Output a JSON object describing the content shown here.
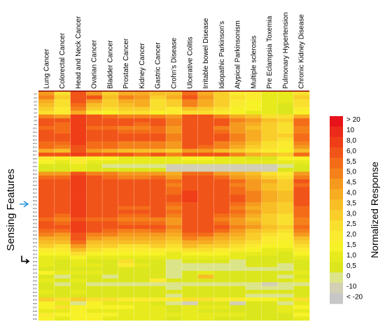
{
  "chart_data": {
    "type": "heatmap",
    "categories": [
      "Lung Cancer",
      "Colorectal Cancer",
      "Head and Neck Cancer",
      "Ovarian Cancer",
      "Bladder Cancer",
      "Prostate Cancer",
      "Kidney Cancer",
      "Gastric Cancer",
      "Crohn's Disease",
      "Ulcerative Colitis",
      "Irritable bowel Disease",
      "Idiopathic Parkinson's",
      "Atypical Parkinsonism",
      "Multiple sclerosis",
      "Pre Eclampsia Toxemia",
      "Pulmonary Hypertension",
      "Chronic Kidney Disease"
    ],
    "rows": [
      "SF1",
      "SF2",
      "SF3",
      "SF4",
      "SF5",
      "SF6",
      "SF7",
      "SF8",
      "SF9",
      "SF10",
      "SF11",
      "SF12",
      "SF13",
      "SF14",
      "SF15",
      "SF16",
      "SF17",
      "SF18",
      "SF19",
      "SF20",
      "SF21",
      "SF22",
      "SF23",
      "SF24",
      "SF25",
      "SF26",
      "SF27",
      "SF28",
      "SF29",
      "SF30",
      "SF31",
      "SF32",
      "SF33",
      "SF34",
      "SF35",
      "SF36",
      "SF37",
      "SF38",
      "SF39",
      "SF40",
      "SF41",
      "SF42",
      "SF43",
      "SF44",
      "SF45",
      "SF46",
      "SF47",
      "SF48",
      "SF49",
      "SF50",
      "SF51",
      "SF52",
      "SF53",
      "SF54",
      "SF55",
      "SF56",
      "SF57",
      "SF58",
      "SF59",
      "SF60"
    ],
    "ylabel": "Sensing Features",
    "legend_title": "Normalized Response",
    "legend_levels": [
      "> 20",
      "10",
      "8,0",
      "6,0",
      "5,5",
      "5,0",
      "4,5",
      "4,0",
      "3,5",
      "3,0",
      "2,5",
      "2,0",
      "1,5",
      "1,0",
      "0,5",
      "0",
      "-10",
      "< -20"
    ],
    "legend_colors": [
      "#E8131A",
      "#EC2A1A",
      "#EF3D18",
      "#F15418",
      "#F46C18",
      "#F5811A",
      "#F59A1E",
      "#F7AC22",
      "#F8BE25",
      "#F9CE2A",
      "#FAE02E",
      "#FBEB30",
      "#F7F227",
      "#E7EA1C",
      "#DCE61D",
      "#DCE48A",
      "#D2CFB5",
      "#C7C7C7"
    ],
    "values": [
      [
        4.5,
        2.8,
        6.5,
        4.8,
        3.2,
        4.4,
        4.1,
        3.5,
        3.7,
        5.6,
        4.3,
        3.2,
        2.2,
        2.2,
        1.3,
        1.1,
        2.8
      ],
      [
        5.1,
        3.3,
        7.5,
        6.6,
        3.9,
        5.0,
        4.6,
        3.3,
        4.2,
        6.3,
        4.9,
        3.0,
        2.5,
        2.1,
        1.4,
        1.3,
        3.3
      ],
      [
        4.1,
        2.5,
        6.9,
        4.7,
        3.4,
        4.2,
        4.1,
        2.8,
        3.4,
        5.2,
        4.4,
        3.2,
        2.2,
        1.6,
        1.1,
        1.1,
        2.7
      ],
      [
        3.9,
        2.7,
        5.9,
        3.8,
        3.2,
        3.6,
        4.0,
        2.7,
        3.0,
        5.1,
        4.4,
        3.3,
        2.2,
        1.9,
        1.2,
        0.9,
        2.5
      ],
      [
        3.0,
        2.2,
        5.1,
        3.2,
        2.7,
        3.0,
        3.1,
        2.5,
        2.4,
        3.6,
        3.2,
        2.5,
        1.7,
        1.9,
        1.1,
        0.9,
        2.1
      ],
      [
        2.7,
        2.0,
        4.4,
        2.3,
        1.9,
        2.8,
        2.6,
        1.9,
        2.0,
        2.8,
        2.8,
        2.4,
        1.9,
        1.3,
        1.1,
        0.5,
        1.9
      ],
      [
        5.1,
        4.9,
        8.0,
        6.3,
        5.9,
        5.2,
        5.2,
        5.4,
        4.6,
        6.1,
        6.0,
        5.2,
        4.1,
        3.7,
        2.5,
        2.6,
        4.1
      ],
      [
        6.8,
        6.1,
        9.4,
        7.2,
        6.8,
        6.2,
        6.3,
        6.3,
        5.3,
        7.3,
        7.0,
        6.2,
        5.0,
        4.5,
        3.5,
        3.2,
        5.9
      ],
      [
        6.4,
        5.9,
        8.9,
        6.6,
        6.5,
        6.0,
        5.9,
        6.0,
        5.1,
        7.2,
        6.8,
        6.0,
        4.9,
        4.1,
        3.1,
        2.8,
        5.5
      ],
      [
        5.8,
        5.5,
        8.1,
        5.9,
        5.8,
        5.4,
        5.3,
        5.5,
        4.8,
        6.4,
        6.0,
        5.3,
        4.6,
        3.7,
        3.0,
        2.5,
        5.0
      ],
      [
        6.2,
        5.8,
        8.6,
        6.4,
        6.3,
        5.8,
        5.7,
        5.9,
        4.9,
        6.8,
        6.5,
        5.8,
        4.9,
        4.0,
        3.1,
        2.7,
        5.3
      ],
      [
        7.0,
        6.4,
        9.5,
        7.1,
        6.9,
        6.4,
        6.2,
        6.4,
        5.4,
        7.5,
        7.2,
        6.4,
        5.3,
        4.4,
        3.4,
        3.0,
        5.7
      ],
      [
        6.6,
        6.2,
        9.1,
        6.8,
        6.6,
        6.2,
        6.0,
        6.3,
        5.3,
        7.3,
        7.0,
        6.2,
        5.2,
        4.3,
        3.3,
        2.9,
        5.6
      ],
      [
        5.9,
        5.5,
        8.0,
        5.9,
        5.8,
        5.4,
        5.3,
        5.4,
        4.7,
        6.4,
        6.1,
        5.4,
        4.6,
        3.6,
        2.9,
        2.4,
        5.0
      ],
      [
        5.5,
        5.2,
        7.6,
        5.7,
        5.5,
        5.0,
        5.0,
        5.2,
        4.5,
        6.1,
        5.8,
        5.1,
        4.4,
        3.4,
        2.8,
        2.3,
        4.8
      ],
      [
        4.4,
        3.8,
        6.2,
        4.5,
        4.2,
        3.8,
        3.7,
        3.9,
        3.3,
        4.6,
        4.5,
        3.9,
        3.4,
        2.6,
        2.1,
        1.8,
        3.6
      ],
      [
        6.2,
        6.3,
        8.5,
        6.5,
        6.3,
        6.0,
        5.8,
        6.2,
        5.3,
        7.1,
        6.9,
        6.1,
        5.3,
        4.2,
        3.6,
        3.1,
        5.6
      ],
      [
        2.0,
        1.6,
        2.4,
        1.8,
        1.5,
        1.3,
        1.2,
        1.4,
        1.2,
        1.6,
        1.5,
        1.4,
        1.2,
        0.9,
        0.9,
        1.7,
        1.7
      ],
      [
        1.5,
        1.3,
        2.2,
        1.3,
        1.2,
        1.1,
        1.2,
        1.2,
        1.0,
        1.4,
        1.3,
        1.2,
        1.1,
        1.2,
        1.0,
        1.4,
        1.4
      ],
      [
        0.7,
        0.6,
        1.1,
        0.6,
        0.4,
        0.3,
        0.3,
        0.4,
        -1,
        -1,
        -1,
        -1,
        -1,
        -1,
        -1,
        0.4,
        0.7
      ],
      [
        0.8,
        0.7,
        1.2,
        0.7,
        0.6,
        0.5,
        0.6,
        0.5,
        -1,
        -1,
        -1,
        -1,
        -1,
        -1,
        -1,
        0.6,
        0.9
      ],
      [
        4.9,
        4.7,
        7.1,
        5.3,
        5.1,
        4.6,
        4.6,
        4.8,
        4.2,
        5.7,
        5.5,
        4.8,
        4.1,
        3.5,
        2.8,
        2.4,
        4.6
      ],
      [
        5.9,
        5.6,
        8.1,
        6.1,
        5.9,
        5.4,
        5.4,
        5.7,
        4.9,
        6.6,
        6.4,
        5.6,
        4.8,
        4.1,
        3.4,
        2.9,
        5.2
      ],
      [
        6.9,
        6.6,
        9.5,
        7.2,
        7.0,
        6.4,
        6.4,
        6.7,
        5.7,
        7.7,
        7.5,
        6.5,
        5.7,
        4.9,
        4.0,
        3.4,
        6.1
      ],
      [
        6.5,
        6.2,
        9.0,
        6.7,
        6.6,
        6.0,
        6.0,
        6.3,
        5.4,
        7.3,
        7.0,
        6.2,
        5.4,
        4.5,
        3.6,
        3.1,
        5.8
      ],
      [
        6.7,
        6.4,
        9.2,
        6.9,
        6.8,
        6.2,
        6.2,
        6.5,
        5.6,
        7.5,
        7.2,
        6.4,
        5.5,
        4.7,
        3.8,
        3.3,
        6.0
      ],
      [
        7.2,
        6.8,
        9.7,
        7.4,
        7.3,
        6.6,
        6.6,
        6.9,
        5.9,
        8.0,
        7.7,
        6.8,
        5.9,
        5.0,
        4.1,
        3.5,
        6.3
      ],
      [
        7.5,
        7.1,
        9.8,
        7.7,
        7.6,
        6.9,
        6.9,
        7.2,
        6.1,
        8.2,
        7.9,
        7.0,
        6.1,
        5.2,
        4.3,
        3.7,
        6.5
      ],
      [
        7.4,
        7.0,
        9.8,
        7.6,
        7.5,
        6.8,
        6.8,
        7.1,
        6.0,
        8.1,
        7.8,
        6.9,
        6.0,
        5.1,
        4.2,
        3.6,
        6.4
      ],
      [
        6.8,
        6.5,
        9.3,
        7.0,
        6.9,
        6.3,
        6.3,
        6.6,
        5.6,
        7.6,
        7.3,
        6.5,
        5.6,
        4.7,
        3.8,
        3.3,
        6.0
      ],
      [
        6.4,
        6.1,
        8.8,
        6.6,
        6.5,
        5.9,
        5.9,
        6.2,
        5.3,
        7.2,
        6.9,
        6.1,
        5.3,
        4.4,
        3.6,
        3.0,
        5.7
      ],
      [
        6.7,
        6.4,
        9.1,
        6.9,
        6.8,
        6.2,
        6.2,
        6.5,
        5.5,
        7.4,
        7.2,
        6.3,
        5.5,
        4.6,
        3.7,
        3.2,
        5.9
      ],
      [
        6.2,
        5.9,
        8.6,
        6.4,
        6.3,
        5.7,
        5.7,
        6.0,
        5.1,
        7.0,
        6.7,
        5.9,
        5.1,
        4.2,
        3.4,
        2.9,
        5.5
      ],
      [
        5.6,
        5.3,
        7.9,
        5.8,
        5.7,
        5.2,
        5.2,
        5.4,
        4.6,
        6.3,
        6.1,
        5.4,
        4.6,
        3.8,
        3.1,
        2.6,
        5.0
      ],
      [
        6.0,
        5.7,
        8.3,
        6.2,
        6.1,
        5.5,
        5.5,
        5.8,
        4.9,
        6.7,
        6.5,
        5.7,
        4.9,
        4.1,
        3.3,
        2.8,
        5.3
      ],
      [
        6.5,
        6.2,
        8.9,
        6.7,
        6.6,
        6.0,
        6.0,
        6.3,
        5.3,
        7.2,
        7.0,
        6.2,
        5.3,
        4.5,
        3.6,
        3.1,
        5.8
      ],
      [
        5.8,
        5.5,
        8.1,
        6.0,
        5.9,
        5.3,
        5.3,
        5.6,
        4.7,
        6.5,
        6.3,
        5.5,
        4.7,
        3.9,
        3.2,
        2.7,
        5.1
      ],
      [
        5.0,
        4.8,
        7.2,
        5.2,
        5.1,
        4.6,
        4.6,
        4.8,
        4.1,
        5.7,
        5.5,
        4.8,
        4.1,
        3.4,
        2.8,
        2.3,
        4.5
      ],
      [
        4.4,
        4.2,
        6.3,
        4.5,
        4.4,
        4.0,
        4.0,
        4.2,
        3.6,
        5.0,
        4.8,
        4.2,
        3.6,
        3.0,
        2.4,
        2.1,
        3.9
      ],
      [
        3.8,
        3.6,
        5.6,
        3.9,
        3.8,
        3.5,
        3.5,
        3.6,
        3.1,
        4.3,
        4.1,
        3.6,
        3.1,
        2.6,
        2.1,
        1.8,
        3.4
      ],
      [
        3.1,
        2.9,
        4.6,
        3.2,
        3.1,
        2.8,
        2.8,
        3.0,
        2.5,
        3.5,
        3.4,
        3.0,
        2.6,
        2.1,
        1.8,
        1.5,
        2.8
      ],
      [
        2.4,
        2.2,
        3.6,
        2.5,
        2.4,
        2.2,
        2.2,
        2.3,
        2.0,
        2.7,
        2.6,
        2.3,
        2.0,
        1.7,
        1.4,
        1.2,
        2.2
      ],
      [
        1.7,
        1.5,
        2.6,
        1.7,
        1.6,
        1.5,
        1.5,
        1.6,
        1.3,
        1.9,
        1.8,
        1.6,
        1.4,
        1.2,
        1.0,
        0.9,
        1.6
      ],
      [
        1.2,
        1.1,
        1.8,
        1.2,
        1.2,
        1.1,
        1.1,
        1.1,
        1.0,
        1.3,
        1.3,
        1.1,
        1.0,
        0.8,
        0.7,
        0.6,
        1.1
      ],
      [
        1.1,
        0.7,
        1.0,
        0.8,
        0.7,
        2.5,
        0.9,
        0.6,
        0.4,
        0.5,
        0.5,
        0.5,
        0.4,
        0.6,
        0.5,
        0.5,
        0.8
      ],
      [
        1.3,
        0.7,
        1.1,
        1.2,
        0.8,
        2.3,
        1.4,
        0.7,
        0.3,
        0.4,
        0.3,
        0.3,
        0.3,
        0.5,
        0.5,
        0.4,
        0.6
      ],
      [
        0.9,
        0.6,
        0.9,
        0.7,
        0.5,
        0.6,
        0.8,
        0.5,
        0.2,
        0.3,
        0.4,
        0.3,
        0.2,
        0.3,
        0.4,
        0.3,
        0.5
      ],
      [
        1.6,
        1.1,
        1.4,
        1.0,
        0.6,
        0.7,
        0.6,
        0.5,
        0.4,
        0.7,
        1.2,
        0.9,
        0.6,
        0.7,
        0.6,
        0.8,
        1.1
      ],
      [
        0.6,
        0.4,
        0.7,
        0.5,
        0.4,
        0.5,
        0.5,
        0.5,
        0.4,
        0.5,
        3.5,
        0.8,
        0.7,
        0.5,
        0.5,
        0.4,
        0.5
      ],
      [
        1.2,
        0.8,
        1.2,
        0.8,
        0.7,
        0.7,
        0.8,
        2.0,
        0.6,
        0.7,
        0.9,
        0.9,
        0.8,
        0.8,
        0.6,
        0.7,
        1.0
      ],
      [
        0.5,
        0.4,
        0.6,
        0.4,
        0.4,
        0.4,
        0.4,
        0.4,
        0.3,
        0.4,
        0.4,
        0.4,
        0.4,
        0.3,
        -1,
        0.3,
        0.4
      ],
      [
        0.6,
        0.5,
        0.8,
        0.5,
        0.5,
        0.5,
        0.5,
        0.5,
        0.4,
        0.5,
        0.5,
        0.5,
        0.5,
        0.4,
        0.4,
        0.4,
        0.5
      ],
      [
        1.0,
        0.7,
        1.1,
        0.8,
        0.7,
        0.7,
        0.7,
        0.7,
        0.6,
        0.7,
        0.7,
        0.7,
        0.7,
        0.6,
        0.6,
        0.5,
        0.8
      ],
      [
        0.7,
        0.5,
        0.8,
        0.6,
        0.5,
        0.5,
        0.5,
        0.5,
        0.4,
        0.5,
        0.5,
        0.5,
        0.5,
        0.4,
        0.4,
        0.4,
        0.6
      ],
      [
        3.0,
        2.5,
        3.3,
        2.8,
        2.5,
        2.4,
        2.4,
        2.3,
        2.0,
        2.6,
        2.5,
        2.3,
        2.2,
        1.9,
        1.6,
        1.4,
        2.5
      ],
      [
        1.5,
        1.4,
        0.3,
        1.6,
        1.4,
        1.2,
        1.0,
        0.9,
        0.2,
        -1,
        0.8,
        0.7,
        -1,
        0.6,
        0.5,
        0.3,
        1.3
      ],
      [
        1.8,
        2.5,
        1.5,
        1.7,
        1.6,
        1.5,
        1.4,
        1.3,
        0.6,
        1.2,
        1.1,
        1.0,
        0.9,
        0.8,
        0.6,
        1.3,
        1.6
      ],
      [
        1.4,
        1.3,
        1.6,
        1.4,
        1.3,
        1.2,
        1.1,
        1.1,
        0.8,
        1.0,
        0.9,
        0.9,
        0.8,
        0.7,
        0.6,
        1.2,
        1.3
      ],
      [
        2.2,
        1.6,
        1.8,
        1.8,
        1.5,
        1.4,
        1.3,
        1.3,
        1.0,
        1.2,
        1.1,
        1.0,
        1.0,
        0.9,
        0.8,
        0.6,
        1.6
      ],
      [
        1.9,
        1.4,
        1.5,
        1.5,
        1.3,
        1.2,
        1.1,
        1.1,
        0.9,
        1.0,
        1.0,
        0.9,
        0.9,
        0.8,
        0.7,
        0.5,
        1.4
      ]
    ]
  },
  "icons": {
    "blue_arrow": "arrow-right-icon",
    "black_arrow": "arrow-down-right-icon"
  },
  "colors": {
    "blue_arrow": "#3399DD",
    "black_arrow": "#000000"
  }
}
